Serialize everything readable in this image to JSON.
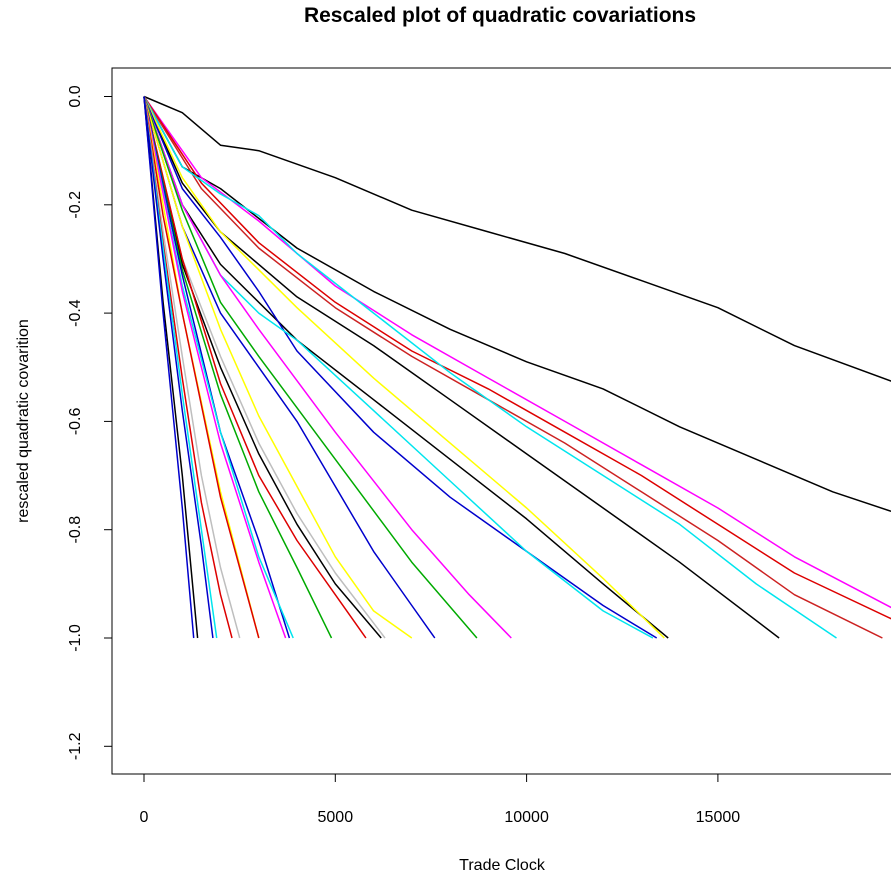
{
  "chart_data": {
    "type": "line",
    "title": "Rescaled plot of quadratic covariations",
    "xlabel": "Trade Clock",
    "ylabel": "rescaled quadratic covarition",
    "xlim": [
      0,
      19700
    ],
    "ylim": [
      -1.25,
      0.05
    ],
    "x_ticks": [
      0,
      5000,
      10000,
      15000
    ],
    "x_tick_labels": [
      "0",
      "5000",
      "10000",
      "15000"
    ],
    "y_ticks": [
      0.0,
      -0.2,
      -0.4,
      -0.6,
      -0.8,
      -1.0,
      -1.2
    ],
    "y_tick_labels": [
      "0.0",
      "-0.2",
      "-0.4",
      "-0.6",
      "-0.8",
      "-1.0",
      "-1.2"
    ],
    "grid": false,
    "legend": "none",
    "series": [
      {
        "color": "#000000",
        "x": [
          0,
          1000,
          2000,
          3000,
          5000,
          7000,
          9000,
          11000,
          13000,
          15000,
          17000,
          19700
        ],
        "y": [
          0.0,
          -0.03,
          -0.09,
          -0.1,
          -0.15,
          -0.21,
          -0.25,
          -0.29,
          -0.34,
          -0.39,
          -0.46,
          -0.53
        ]
      },
      {
        "color": "#000000",
        "x": [
          0,
          1000,
          2000,
          4000,
          6000,
          8000,
          10000,
          12000,
          14000,
          16000,
          18000,
          19700
        ],
        "y": [
          0.0,
          -0.13,
          -0.17,
          -0.28,
          -0.36,
          -0.43,
          -0.49,
          -0.54,
          -0.61,
          -0.67,
          -0.73,
          -0.77
        ]
      },
      {
        "color": "#ff00ff",
        "x": [
          0,
          1500,
          3000,
          5000,
          7000,
          9000,
          11000,
          13000,
          15000,
          17000,
          19700
        ],
        "y": [
          0.0,
          -0.15,
          -0.23,
          -0.35,
          -0.44,
          -0.52,
          -0.6,
          -0.68,
          -0.76,
          -0.85,
          -0.95
        ]
      },
      {
        "color": "#dd0000",
        "x": [
          0,
          1500,
          3000,
          5000,
          7000,
          9000,
          11000,
          13000,
          15000,
          17000,
          19700
        ],
        "y": [
          0.0,
          -0.16,
          -0.27,
          -0.38,
          -0.47,
          -0.54,
          -0.62,
          -0.7,
          -0.79,
          -0.88,
          -0.97
        ]
      },
      {
        "color": "#cc2222",
        "x": [
          0,
          1500,
          3000,
          5000,
          7000,
          9000,
          11000,
          13000,
          15000,
          17000,
          19300
        ],
        "y": [
          0.0,
          -0.17,
          -0.28,
          -0.39,
          -0.48,
          -0.56,
          -0.64,
          -0.73,
          -0.82,
          -0.92,
          -1.0
        ]
      },
      {
        "color": "#00e5ee",
        "x": [
          0,
          1000,
          2000,
          3000,
          4000,
          6000,
          8000,
          10000,
          12000,
          14000,
          16000,
          18100
        ],
        "y": [
          0.0,
          -0.13,
          -0.18,
          -0.22,
          -0.29,
          -0.4,
          -0.51,
          -0.61,
          -0.7,
          -0.79,
          -0.9,
          -1.0
        ]
      },
      {
        "color": "#000000",
        "x": [
          0,
          1000,
          2000,
          4000,
          6000,
          8000,
          10000,
          12000,
          14000,
          16600
        ],
        "y": [
          0.0,
          -0.16,
          -0.25,
          -0.37,
          -0.46,
          -0.56,
          -0.66,
          -0.76,
          -0.86,
          -1.0
        ]
      },
      {
        "color": "#000000",
        "x": [
          0,
          1000,
          2000,
          4000,
          6000,
          8000,
          10000,
          12000,
          13700
        ],
        "y": [
          0.0,
          -0.2,
          -0.31,
          -0.45,
          -0.56,
          -0.67,
          -0.78,
          -0.9,
          -1.0
        ]
      },
      {
        "color": "#ffff00",
        "x": [
          0,
          1000,
          2000,
          4000,
          6000,
          8000,
          10000,
          12000,
          13600
        ],
        "y": [
          0.0,
          -0.15,
          -0.25,
          -0.39,
          -0.52,
          -0.64,
          -0.76,
          -0.89,
          -1.0
        ]
      },
      {
        "color": "#0000cc",
        "x": [
          0,
          1000,
          2000,
          3000,
          4000,
          6000,
          8000,
          10000,
          12000,
          13400
        ],
        "y": [
          0.0,
          -0.17,
          -0.26,
          -0.36,
          -0.47,
          -0.62,
          -0.74,
          -0.84,
          -0.94,
          -1.0
        ]
      },
      {
        "color": "#00e5ee",
        "x": [
          0,
          1000,
          2000,
          3000,
          4000,
          6000,
          8000,
          10000,
          12000,
          13300
        ],
        "y": [
          0.0,
          -0.2,
          -0.33,
          -0.4,
          -0.45,
          -0.58,
          -0.71,
          -0.84,
          -0.95,
          -1.0
        ]
      },
      {
        "color": "#ff00ff",
        "x": [
          0,
          1000,
          2000,
          3000,
          5000,
          7000,
          8500,
          9600
        ],
        "y": [
          0.0,
          -0.2,
          -0.33,
          -0.43,
          -0.62,
          -0.8,
          -0.92,
          -1.0
        ]
      },
      {
        "color": "#00aa00",
        "x": [
          0,
          1000,
          2000,
          3000,
          5000,
          7000,
          8700
        ],
        "y": [
          0.0,
          -0.21,
          -0.38,
          -0.48,
          -0.67,
          -0.86,
          -1.0
        ]
      },
      {
        "color": "#0000cc",
        "x": [
          0,
          1000,
          2000,
          3000,
          4000,
          5000,
          6000,
          7000,
          7600
        ],
        "y": [
          0.0,
          -0.24,
          -0.4,
          -0.5,
          -0.6,
          -0.72,
          -0.84,
          -0.94,
          -1.0
        ]
      },
      {
        "color": "#ffff00",
        "x": [
          0,
          1000,
          2000,
          3000,
          4000,
          5000,
          6000,
          7000
        ],
        "y": [
          0.0,
          -0.24,
          -0.43,
          -0.59,
          -0.72,
          -0.85,
          -0.95,
          -1.0
        ]
      },
      {
        "color": "#bebebe",
        "x": [
          0,
          1000,
          2000,
          3000,
          4000,
          5000,
          6300
        ],
        "y": [
          0.0,
          -0.3,
          -0.48,
          -0.64,
          -0.77,
          -0.88,
          -1.0
        ]
      },
      {
        "color": "#000000",
        "x": [
          0,
          1000,
          2000,
          3000,
          4000,
          5000,
          6200
        ],
        "y": [
          0.0,
          -0.31,
          -0.5,
          -0.66,
          -0.79,
          -0.9,
          -1.0
        ]
      },
      {
        "color": "#dd0000",
        "x": [
          0,
          1000,
          2000,
          3000,
          4000,
          5000,
          5800
        ],
        "y": [
          0.0,
          -0.3,
          -0.53,
          -0.7,
          -0.82,
          -0.92,
          -1.0
        ]
      },
      {
        "color": "#00aa00",
        "x": [
          0,
          1000,
          2000,
          3000,
          4000,
          4900
        ],
        "y": [
          0.0,
          -0.32,
          -0.55,
          -0.73,
          -0.87,
          -1.0
        ]
      },
      {
        "color": "#0000cc",
        "x": [
          0,
          1000,
          2000,
          3000,
          3800
        ],
        "y": [
          0.0,
          -0.33,
          -0.62,
          -0.82,
          -1.0
        ]
      },
      {
        "color": "#00e5ee",
        "x": [
          0,
          1000,
          2000,
          3000,
          3900
        ],
        "y": [
          0.0,
          -0.35,
          -0.62,
          -0.85,
          -1.0
        ]
      },
      {
        "color": "#ff00ff",
        "x": [
          0,
          1000,
          2000,
          3000,
          3700
        ],
        "y": [
          0.0,
          -0.36,
          -0.64,
          -0.86,
          -1.0
        ]
      },
      {
        "color": "#ffff00",
        "x": [
          0,
          1000,
          2000,
          3000
        ],
        "y": [
          0.0,
          -0.4,
          -0.73,
          -1.0
        ]
      },
      {
        "color": "#dd0000",
        "x": [
          0,
          500,
          1000,
          2000,
          3000
        ],
        "y": [
          0.0,
          -0.22,
          -0.4,
          -0.74,
          -1.0
        ]
      },
      {
        "color": "#bebebe",
        "x": [
          0,
          500,
          1000,
          1500,
          2000,
          2500
        ],
        "y": [
          0.0,
          -0.25,
          -0.48,
          -0.7,
          -0.87,
          -1.0
        ]
      },
      {
        "color": "#dd0000",
        "x": [
          0,
          500,
          1000,
          1500,
          2000,
          2300
        ],
        "y": [
          0.0,
          -0.27,
          -0.52,
          -0.75,
          -0.92,
          -1.0
        ]
      },
      {
        "color": "#00e5ee",
        "x": [
          0,
          500,
          1000,
          1500,
          1900
        ],
        "y": [
          0.0,
          -0.28,
          -0.55,
          -0.8,
          -1.0
        ]
      },
      {
        "color": "#0000cc",
        "x": [
          0,
          500,
          1000,
          1500,
          1800
        ],
        "y": [
          0.0,
          -0.3,
          -0.58,
          -0.83,
          -1.0
        ]
      },
      {
        "color": "#000000",
        "x": [
          0,
          500,
          1000,
          1400
        ],
        "y": [
          0.0,
          -0.38,
          -0.7,
          -1.0
        ]
      },
      {
        "color": "#0000cc",
        "x": [
          0,
          500,
          1000,
          1300
        ],
        "y": [
          0.0,
          -0.4,
          -0.76,
          -1.0
        ]
      }
    ]
  }
}
